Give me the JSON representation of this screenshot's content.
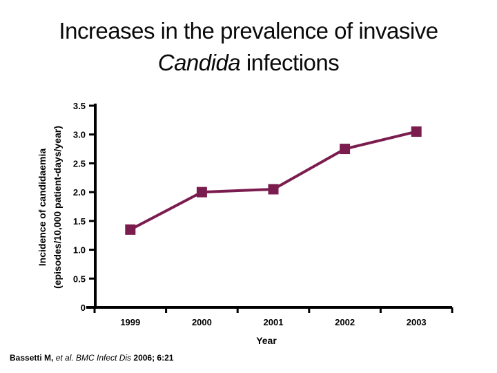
{
  "slide": {
    "title": {
      "line1": "Increases in the prevalence of invasive",
      "line2_italic": "Candida",
      "line2_rest": " infections"
    },
    "citation": {
      "authors": "Bassetti M, ",
      "etal_journal": "et al. BMC Infect Dis ",
      "ref": "2006; 6:21"
    }
  },
  "chart_data": {
    "type": "line",
    "categories": [
      "1999",
      "2000",
      "2001",
      "2002",
      "2003"
    ],
    "values": [
      1.35,
      2.0,
      2.05,
      2.75,
      3.05
    ],
    "title": "",
    "xlabel": "Year",
    "ylabel_line1": "Incidence of candidaemia",
    "ylabel_line2": "(episodes/10,000 patient-days/year)",
    "ylim": [
      0,
      3.5
    ],
    "ytick_step": 0.5,
    "ytick_labels": [
      "0",
      "0.5",
      "1.0",
      "1.5",
      "2.0",
      "2.5",
      "3.0",
      "3.5"
    ],
    "marker": "square",
    "marker_size_px": 15,
    "line_color": "#7B1C4E",
    "axis_color": "#000000",
    "grid": false,
    "legend": false
  }
}
